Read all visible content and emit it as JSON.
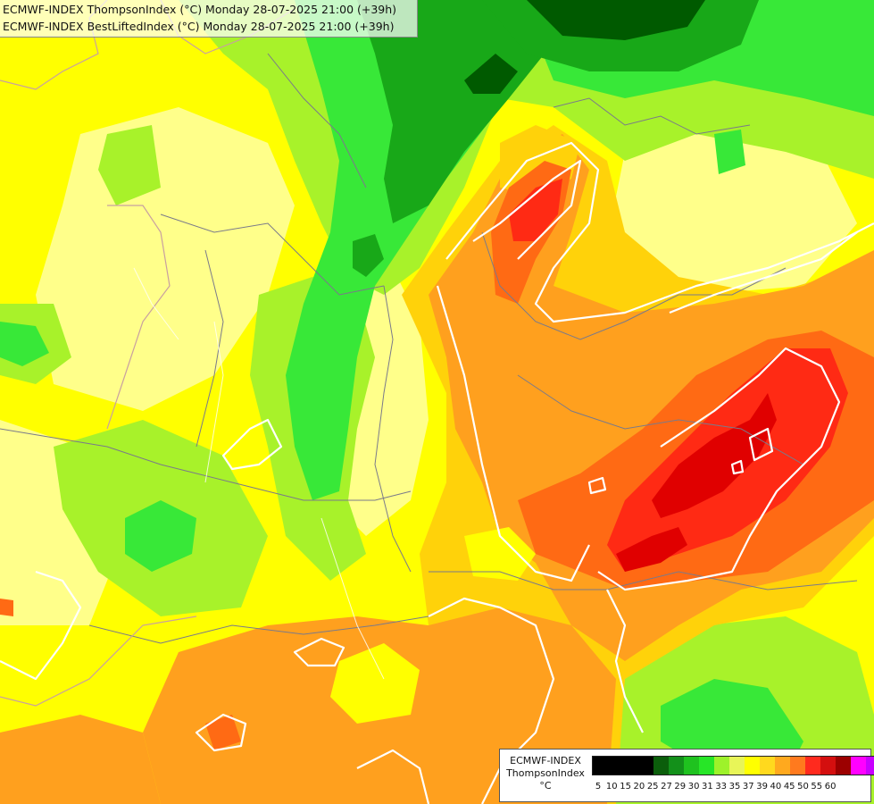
{
  "titles": {
    "line1": "ECMWF-INDEX ThompsonIndex (°C) Monday 28-07-2025 21:00 (+39h)",
    "line2": "ECMWF-INDEX BestLiftedIndex (°C) Monday 28-07-2025 21:00 (+39h)"
  },
  "legend": {
    "model": "ECMWF-INDEX",
    "parameter": "ThompsonIndex",
    "unit": "°C",
    "values": [
      "5",
      "10",
      "15",
      "20",
      "25",
      "27",
      "29",
      "30",
      "31",
      "33",
      "35",
      "37",
      "39",
      "40",
      "45",
      "50",
      "55",
      "60"
    ],
    "colors": [
      "#000000",
      "#000000",
      "#000000",
      "#000000",
      "#0b5e0b",
      "#13901a",
      "#1fc21f",
      "#27e627",
      "#9ef22a",
      "#e8f558",
      "#ffff00",
      "#ffd91e",
      "#ffa91e",
      "#ff7a1e",
      "#ff2a1e",
      "#d40f0f",
      "#9c0000",
      "#ff00ff",
      "#c800ff",
      "#9a32ff",
      "#5a32ff",
      "#0000ff"
    ]
  },
  "palette": {
    "dark_green": "#005a00",
    "mid_green": "#18a818",
    "light_green": "#38e838",
    "yellow_green": "#a8f22a",
    "pale_yellow": "#ffff8a",
    "yellow": "#ffff00",
    "gold": "#ffd20a",
    "orange": "#ffa01e",
    "dark_orange": "#ff6a14",
    "red": "#ff2a14",
    "deep_red": "#e00000",
    "contour": "#ffffff",
    "border": "#7a7a8a",
    "water": "#c8a0a0"
  }
}
